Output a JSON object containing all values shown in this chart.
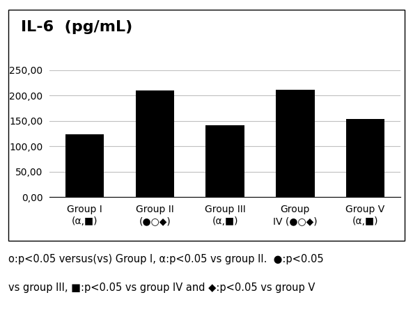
{
  "title": "IL-6  (pg/mL)",
  "categories": [
    "Group I\n(α,■)",
    "Group II\n(●○◆)",
    "Group III\n(α,■)",
    "Group\nIV (●○◆)",
    "Group V\n(α,■)"
  ],
  "values": [
    124,
    210,
    141,
    211,
    154
  ],
  "bar_color": "#000000",
  "ylim": [
    0,
    250
  ],
  "yticks": [
    0,
    50,
    100,
    150,
    200,
    250
  ],
  "ytick_labels": [
    "0,00",
    "50,00",
    "100,00",
    "150,00",
    "200,00",
    "250,00"
  ],
  "background_color": "#ffffff",
  "caption_line1": "o:p<0.05 versus(vs) Group I, α:p<0.05 vs group II.  ●:p<0.05",
  "caption_line2": "vs group III, ■:p<0.05 vs group IV and ◆:p<0.05 vs group V",
  "title_fontsize": 16,
  "tick_fontsize": 10,
  "caption_fontsize": 10.5,
  "bar_width": 0.55,
  "grid_color": "#c0c0c0",
  "border_color": "#000000"
}
